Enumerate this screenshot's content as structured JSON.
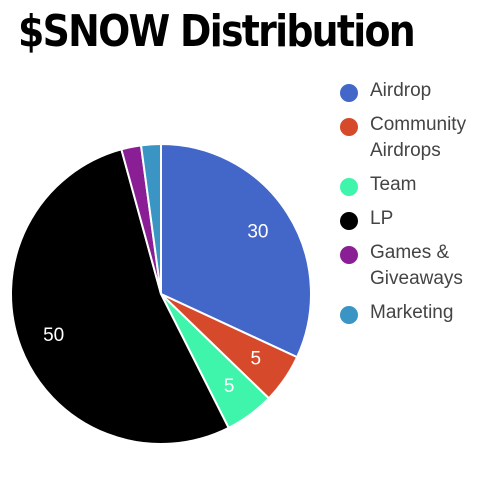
{
  "chart_data": {
    "type": "pie",
    "title": "$SNOW Distribution",
    "slices": [
      {
        "label": "Airdrop",
        "value": 30,
        "color": "#4366c9",
        "value_label": "30"
      },
      {
        "label": "Community Airdrops",
        "value": 5,
        "color": "#d64a2b",
        "value_label": "5"
      },
      {
        "label": "Team",
        "value": 5,
        "color": "#3ff5ab",
        "value_label": "5"
      },
      {
        "label": "LP",
        "value": 50,
        "color": "#000000",
        "value_label": "50"
      },
      {
        "label": "Games & Giveaways",
        "value": 2,
        "color": "#8a1f95",
        "value_label": ""
      },
      {
        "label": "Marketing",
        "value": 2,
        "color": "#3a95c4",
        "value_label": ""
      }
    ],
    "legend_position": "right"
  }
}
